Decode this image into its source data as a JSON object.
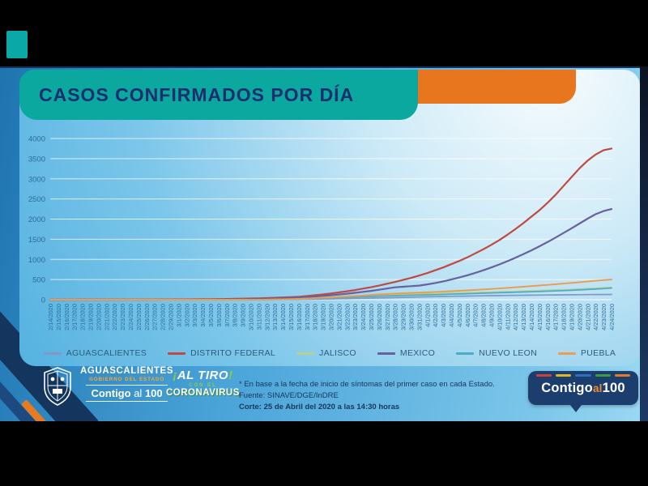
{
  "header": {
    "title": "CASOS CONFIRMADOS POR DÍA"
  },
  "colors": {
    "title_block": "#0aa89e",
    "accent_bar": "#e8761f",
    "title_text": "#1b2f6e",
    "axis_text": "#2b6d99",
    "legend_text": "#2f5b7a",
    "badge_bg": "#1c3e6e",
    "badge_al": "#f08a2d"
  },
  "chart_data": {
    "type": "line",
    "title": "CASOS CONFIRMADOS POR DÍA",
    "xlabel": "",
    "ylabel": "",
    "ylim": [
      0,
      4000
    ],
    "yticks": [
      0,
      500,
      1000,
      1500,
      2000,
      2500,
      3000,
      3500,
      4000
    ],
    "grid": true,
    "legend_position": "bottom",
    "categories": [
      "2/14/2020",
      "2/15/2020",
      "2/16/2020",
      "2/17/2020",
      "2/18/2020",
      "2/19/2020",
      "2/20/2020",
      "2/21/2020",
      "2/22/2020",
      "2/23/2020",
      "2/24/2020",
      "2/25/2020",
      "2/26/2020",
      "2/27/2020",
      "2/28/2020",
      "2/29/2020",
      "3/1/2020",
      "3/2/2020",
      "3/3/2020",
      "3/4/2020",
      "3/5/2020",
      "3/6/2020",
      "3/7/2020",
      "3/8/2020",
      "3/9/2020",
      "3/10/2020",
      "3/11/2020",
      "3/12/2020",
      "3/13/2020",
      "3/14/2020",
      "3/15/2020",
      "3/16/2020",
      "3/17/2020",
      "3/18/2020",
      "3/19/2020",
      "3/20/2020",
      "3/21/2020",
      "3/22/2020",
      "3/23/2020",
      "3/24/2020",
      "3/25/2020",
      "3/26/2020",
      "3/27/2020",
      "3/28/2020",
      "3/29/2020",
      "3/30/2020",
      "3/31/2020",
      "4/1/2020",
      "4/2/2020",
      "4/3/2020",
      "4/4/2020",
      "4/5/2020",
      "4/6/2020",
      "4/7/2020",
      "4/8/2020",
      "4/9/2020",
      "4/10/2020",
      "4/11/2020",
      "4/12/2020",
      "4/13/2020",
      "4/14/2020",
      "4/15/2020",
      "4/16/2020",
      "4/17/2020",
      "4/18/2020",
      "4/19/2020",
      "4/20/2020",
      "4/21/2020",
      "4/22/2020",
      "4/23/2020",
      "4/24/2020"
    ],
    "series": [
      {
        "name": "AGUASCALIENTES",
        "color": "#8098c4",
        "width": 1.7,
        "values": [
          0,
          0,
          0,
          0,
          0,
          0,
          0,
          0,
          0,
          0,
          0,
          0,
          0,
          0,
          0,
          0,
          0,
          0,
          0,
          0,
          0,
          0,
          1,
          1,
          2,
          2,
          3,
          4,
          5,
          6,
          8,
          10,
          12,
          15,
          18,
          21,
          24,
          28,
          32,
          36,
          40,
          44,
          48,
          53,
          58,
          63,
          68,
          72,
          76,
          80,
          84,
          88,
          91,
          94,
          97,
          100,
          103,
          106,
          108,
          110,
          112,
          115,
          117,
          119,
          121,
          123,
          125,
          126,
          128,
          129,
          130
        ]
      },
      {
        "name": "DISTRITO FEDERAL",
        "color": "#bf4a42",
        "width": 2.2,
        "values": [
          1,
          1,
          1,
          1,
          2,
          2,
          2,
          3,
          3,
          3,
          4,
          4,
          5,
          5,
          6,
          7,
          8,
          9,
          10,
          12,
          14,
          16,
          19,
          22,
          26,
          30,
          35,
          41,
          48,
          56,
          65,
          75,
          90,
          110,
          130,
          155,
          180,
          210,
          240,
          275,
          310,
          350,
          395,
          440,
          490,
          540,
          600,
          660,
          730,
          800,
          880,
          960,
          1050,
          1150,
          1250,
          1360,
          1480,
          1610,
          1750,
          1900,
          2060,
          2220,
          2400,
          2600,
          2820,
          3040,
          3260,
          3450,
          3600,
          3710,
          3750
        ]
      },
      {
        "name": "JALISCO",
        "color": "#b8cf8e",
        "width": 1.7,
        "values": [
          0,
          0,
          0,
          0,
          0,
          0,
          0,
          0,
          0,
          0,
          0,
          0,
          0,
          0,
          0,
          0,
          0,
          0,
          0,
          0,
          0,
          0,
          0,
          0,
          1,
          2,
          3,
          5,
          7,
          10,
          14,
          18,
          25,
          35,
          45,
          55,
          65,
          75,
          85,
          95,
          103,
          110,
          118,
          125,
          131,
          136,
          140,
          145,
          150,
          155,
          160,
          165,
          170,
          176,
          182,
          188,
          195,
          201,
          207,
          214,
          220,
          227,
          234,
          241,
          248,
          255,
          264,
          274,
          285,
          297,
          310
        ]
      },
      {
        "name": "MEXICO",
        "color": "#67619f",
        "width": 2.2,
        "values": [
          0,
          0,
          0,
          0,
          0,
          0,
          0,
          0,
          0,
          0,
          0,
          1,
          1,
          1,
          2,
          2,
          3,
          3,
          4,
          5,
          6,
          8,
          10,
          12,
          15,
          18,
          22,
          27,
          33,
          40,
          48,
          57,
          68,
          80,
          95,
          110,
          128,
          148,
          170,
          195,
          220,
          248,
          278,
          308,
          322,
          336,
          350,
          380,
          415,
          455,
          500,
          550,
          605,
          665,
          730,
          800,
          875,
          955,
          1040,
          1130,
          1225,
          1325,
          1430,
          1540,
          1655,
          1770,
          1890,
          2010,
          2120,
          2200,
          2250
        ]
      },
      {
        "name": "NUEVO LEON",
        "color": "#4bacc6",
        "width": 1.7,
        "values": [
          0,
          0,
          0,
          0,
          0,
          0,
          0,
          0,
          0,
          0,
          0,
          0,
          0,
          0,
          0,
          0,
          0,
          0,
          0,
          0,
          0,
          0,
          0,
          1,
          1,
          2,
          3,
          5,
          8,
          11,
          15,
          20,
          26,
          33,
          40,
          47,
          54,
          61,
          68,
          75,
          81,
          87,
          93,
          99,
          105,
          110,
          115,
          120,
          125,
          130,
          136,
          142,
          148,
          154,
          160,
          166,
          172,
          178,
          184,
          190,
          197,
          204,
          211,
          218,
          226,
          234,
          243,
          253,
          264,
          276,
          290
        ]
      },
      {
        "name": "PUEBLA",
        "color": "#eb9c4d",
        "width": 1.9,
        "values": [
          0,
          0,
          0,
          0,
          0,
          0,
          0,
          0,
          0,
          0,
          0,
          0,
          0,
          0,
          0,
          0,
          0,
          0,
          0,
          0,
          0,
          0,
          0,
          0,
          1,
          2,
          3,
          5,
          8,
          12,
          17,
          23,
          30,
          38,
          47,
          57,
          68,
          80,
          92,
          105,
          118,
          130,
          141,
          151,
          160,
          168,
          175,
          183,
          192,
          201,
          211,
          221,
          232,
          243,
          255,
          267,
          280,
          294,
          308,
          322,
          337,
          352,
          368,
          384,
          400,
          417,
          435,
          453,
          470,
          486,
          500
        ]
      }
    ]
  },
  "footer": {
    "gov_logo": {
      "state": "AGUASCALIENTES",
      "subtitle": "GOBIERNO DEL ESTADO",
      "tagline_contigo": "Contigo",
      "tagline_al": "al",
      "tagline_100": "100"
    },
    "campaign_logo": {
      "open_ex": "¡",
      "line1": "AL TIRO",
      "close_ex": "!",
      "line2": "CON EL",
      "line3": "CORONAVIRUS"
    },
    "notes": {
      "line1": "* En base a la fecha de inicio de síntomas del primer caso en cada Estado.",
      "line2": "Fuente: SINAVE/DGE/InDRE",
      "line3": "Corte: 25 de Abril del 2020 a las 14:30 horas"
    },
    "badge": {
      "contigo": "Contigo",
      "al": "al",
      "num": "100",
      "dash_colors": [
        "#c94436",
        "#e3b428",
        "#2f6fc0",
        "#3f9b3f",
        "#e07b2a"
      ]
    }
  }
}
